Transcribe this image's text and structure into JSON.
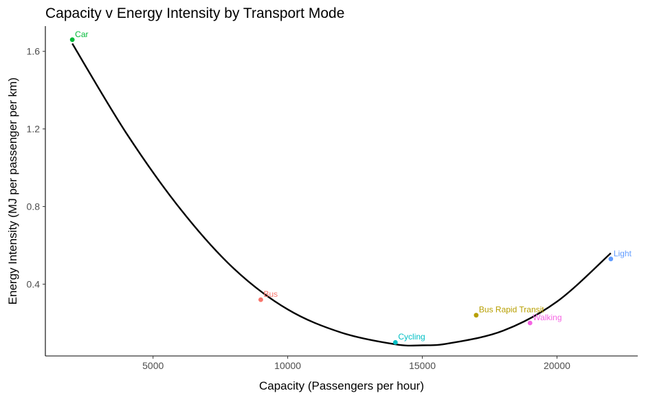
{
  "chart_data": {
    "type": "scatter",
    "title": "Capacity v Energy Intensity by Transport Mode",
    "xlabel": "Capacity (Passengers per hour)",
    "ylabel": "Energy Intensity (MJ per passenger per km)",
    "xlim": [
      1000,
      23000
    ],
    "ylim": [
      0.03,
      1.73
    ],
    "x_ticks": [
      5000,
      10000,
      15000,
      20000
    ],
    "y_ticks": [
      0.4,
      0.8,
      1.2,
      1.6
    ],
    "x_tick_labels": [
      "5000",
      "10000",
      "15000",
      "20000"
    ],
    "y_tick_labels": [
      "0.4",
      "0.8",
      "1.2",
      "1.6"
    ],
    "grid": false,
    "legend": "none",
    "points": [
      {
        "label": "Car",
        "x": 2000,
        "y": 1.66,
        "color": "#00ba38"
      },
      {
        "label": "Bus",
        "x": 9000,
        "y": 0.32,
        "color": "#f8766d"
      },
      {
        "label": "Cycling",
        "x": 14000,
        "y": 0.1,
        "color": "#00bfc4"
      },
      {
        "label": "Bus Rapid Transit",
        "x": 17000,
        "y": 0.24,
        "color": "#b79f00"
      },
      {
        "label": "Walking",
        "x": 19000,
        "y": 0.2,
        "color": "#f564e3"
      },
      {
        "label": "Light",
        "x": 22000,
        "y": 0.53,
        "color": "#619cff"
      }
    ],
    "trend_line": {
      "type": "smooth",
      "color": "#000000",
      "x": [
        2000,
        4000,
        6000,
        8000,
        10000,
        12000,
        14000,
        15000,
        16000,
        18000,
        20000,
        22000
      ],
      "y": [
        1.64,
        1.18,
        0.79,
        0.48,
        0.27,
        0.15,
        0.09,
        0.085,
        0.095,
        0.16,
        0.31,
        0.56
      ]
    }
  }
}
